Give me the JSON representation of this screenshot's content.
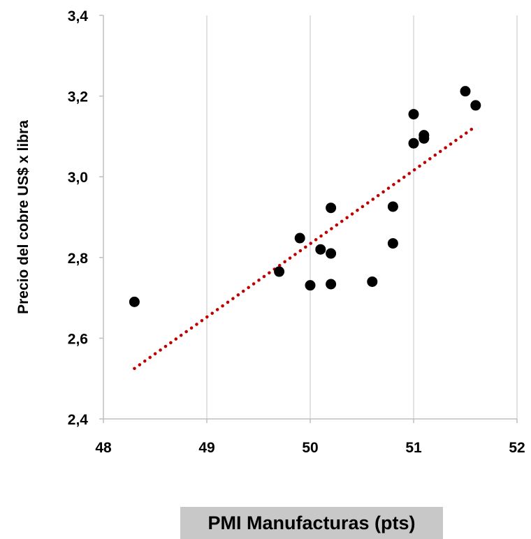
{
  "chart_data": {
    "type": "scatter",
    "xlabel": "PMI Manufacturas (pts)",
    "ylabel": "Precio del cobre US$ x libra",
    "xlim": [
      48,
      52
    ],
    "ylim": [
      2.4,
      3.4
    ],
    "x_ticks": [
      "48",
      "49",
      "50",
      "51",
      "52"
    ],
    "y_ticks": [
      "2,4",
      "2,6",
      "2,8",
      "3,0",
      "3,2",
      "3,4"
    ],
    "grid": "vertical",
    "colors": {
      "points": "#000000",
      "trendline": "#c00000",
      "grid": "#d9d9d9"
    },
    "points": [
      {
        "x": 48.3,
        "y": 2.69
      },
      {
        "x": 49.7,
        "y": 2.765
      },
      {
        "x": 49.9,
        "y": 2.848
      },
      {
        "x": 50.0,
        "y": 2.731
      },
      {
        "x": 50.1,
        "y": 2.82
      },
      {
        "x": 50.2,
        "y": 2.923
      },
      {
        "x": 50.2,
        "y": 2.81
      },
      {
        "x": 50.2,
        "y": 2.734
      },
      {
        "x": 50.6,
        "y": 2.74
      },
      {
        "x": 50.8,
        "y": 2.926
      },
      {
        "x": 50.8,
        "y": 2.835
      },
      {
        "x": 51.0,
        "y": 3.155
      },
      {
        "x": 51.0,
        "y": 3.083
      },
      {
        "x": 51.1,
        "y": 3.103
      },
      {
        "x": 51.1,
        "y": 3.095
      },
      {
        "x": 51.5,
        "y": 3.212
      },
      {
        "x": 51.6,
        "y": 3.177
      }
    ],
    "trendline": {
      "style": "dotted",
      "x": [
        48.3,
        51.6
      ],
      "y": [
        2.525,
        3.125
      ]
    }
  }
}
